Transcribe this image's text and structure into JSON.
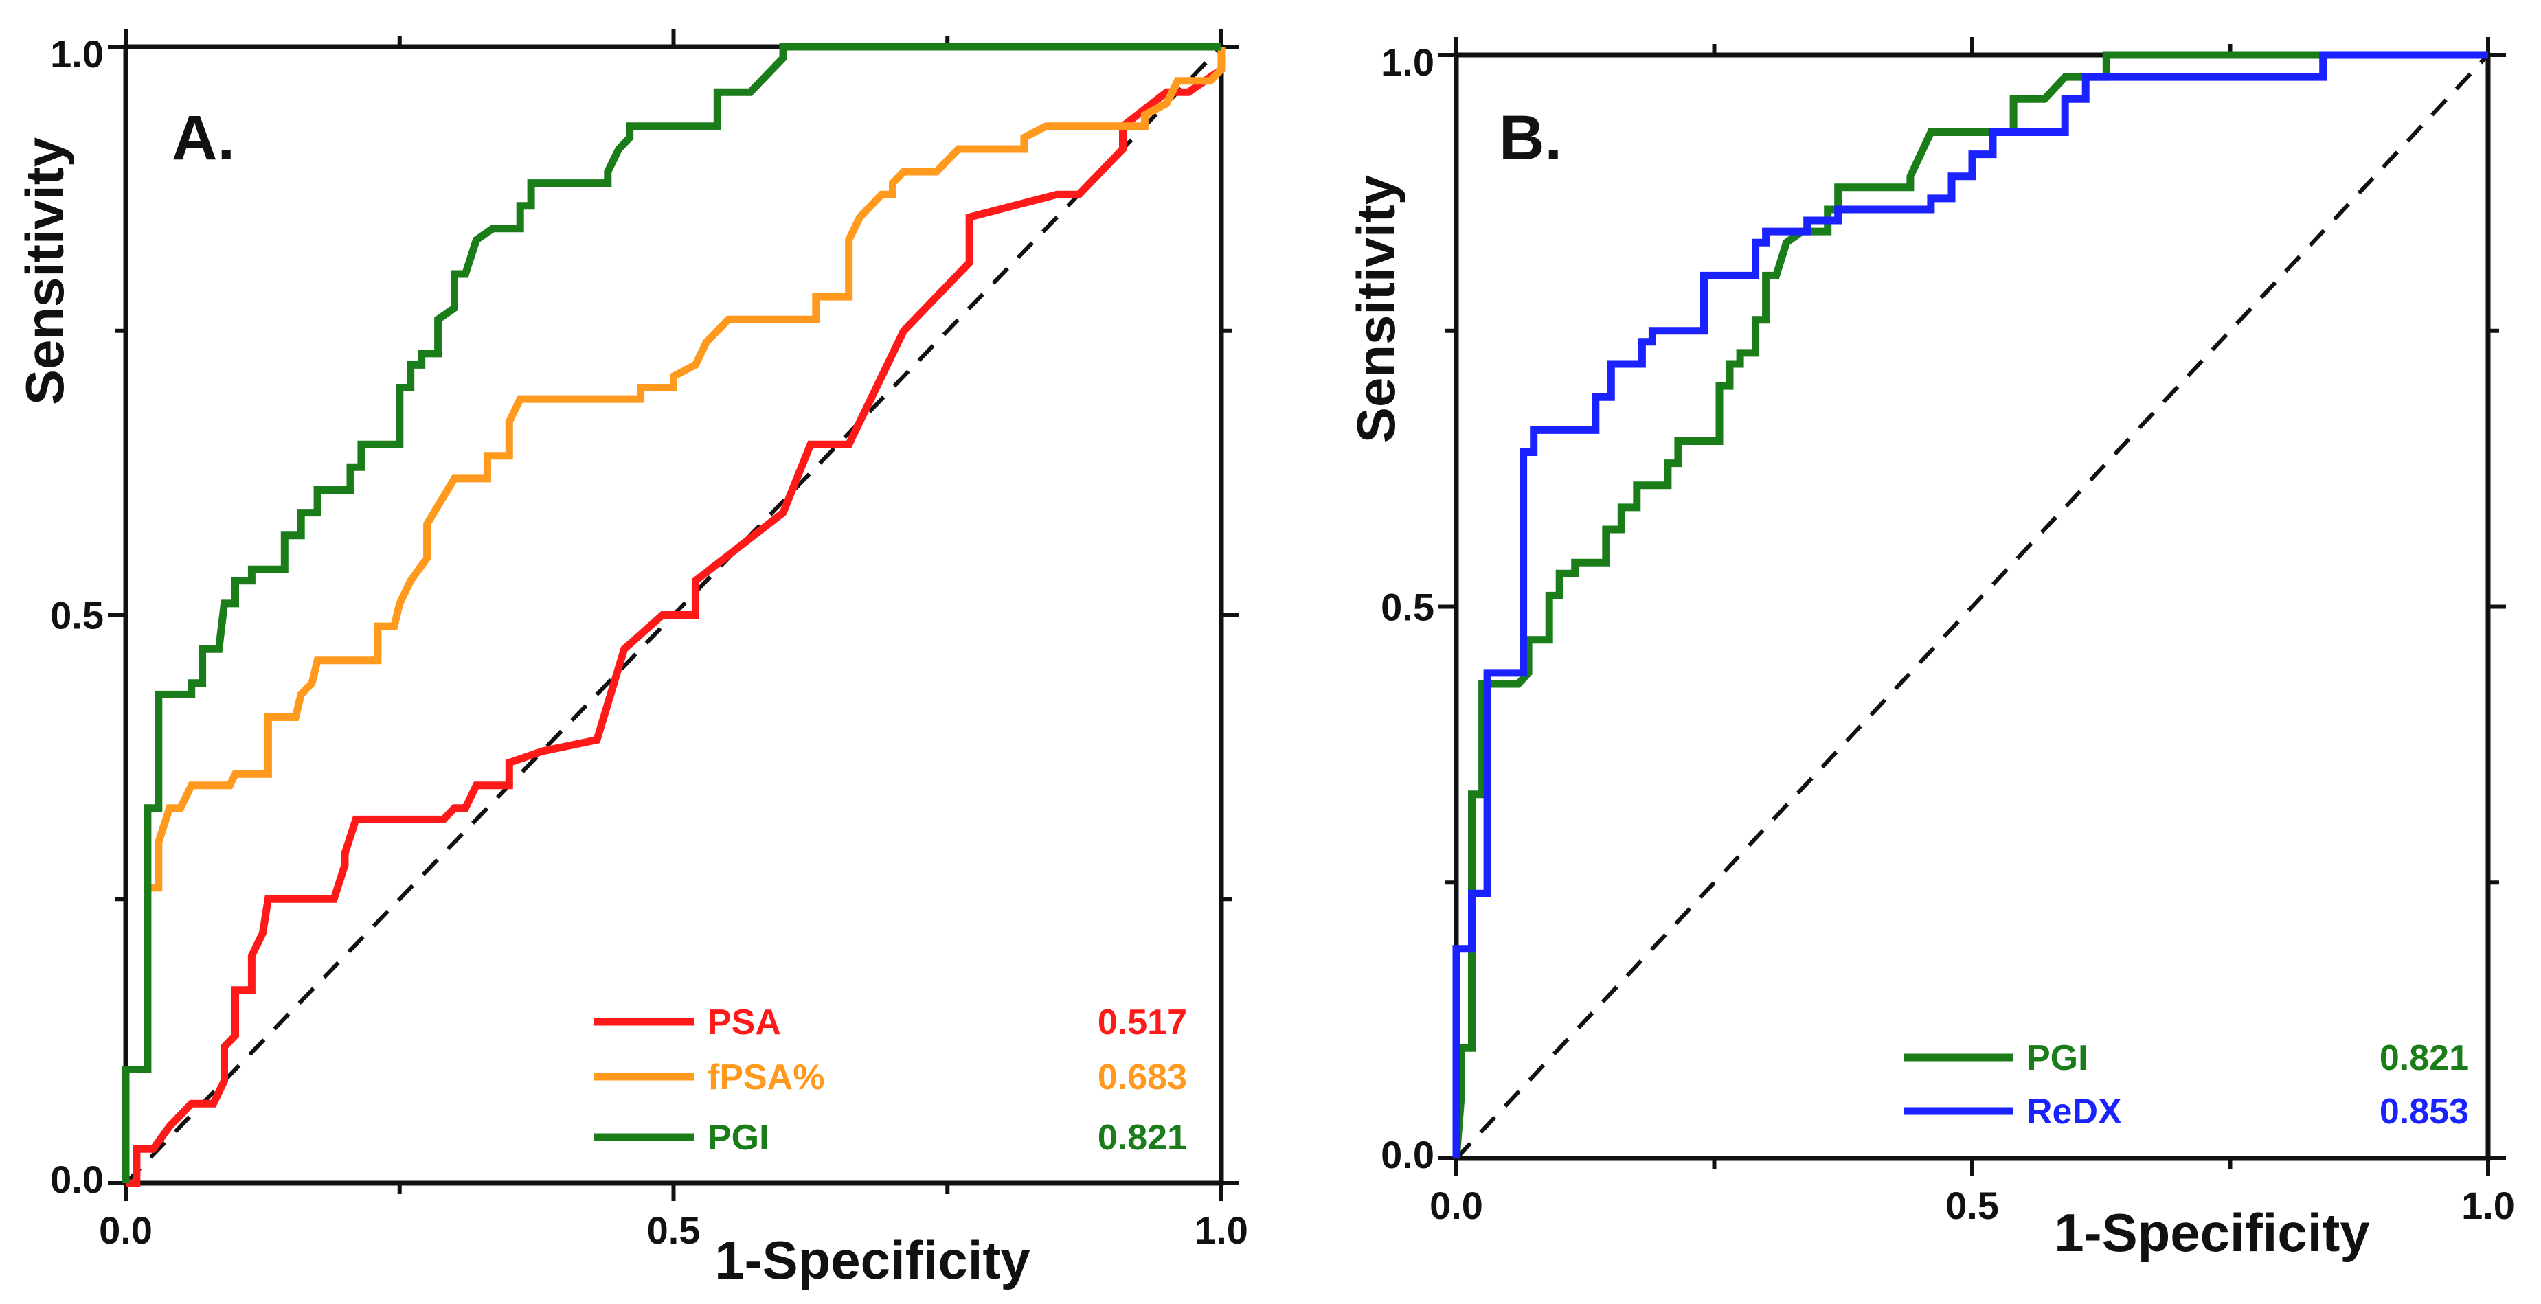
{
  "colors": {
    "PSA": "#ff1a1a",
    "fPSA%": "#ff9a1e",
    "PGI": "#1a7d1a",
    "ReDX": "#1a22ff",
    "reference": "#111111",
    "frame": "#111111"
  },
  "chart_data": [
    {
      "type": "line",
      "panel_label": "A.",
      "title": "",
      "xlabel": "1-Specificity",
      "ylabel": "Sensitivity",
      "xlim": [
        0,
        1
      ],
      "ylim": [
        0,
        1
      ],
      "xticks": [
        "0.0",
        "0.5",
        "1.0"
      ],
      "yticks": [
        "0.0",
        "0.5",
        "1.0"
      ],
      "grid": false,
      "reference_line": [
        [
          0,
          0
        ],
        [
          1,
          1
        ]
      ],
      "legend_position": "bottom-right",
      "series": [
        {
          "name": "PSA",
          "auc": "0.517",
          "color_key": "PSA",
          "points": [
            [
              0,
              0
            ],
            [
              0.01,
              0
            ],
            [
              0.01,
              0.03
            ],
            [
              0.025,
              0.03
            ],
            [
              0.04,
              0.05
            ],
            [
              0.06,
              0.07
            ],
            [
              0.08,
              0.07
            ],
            [
              0.09,
              0.09
            ],
            [
              0.09,
              0.12
            ],
            [
              0.1,
              0.13
            ],
            [
              0.1,
              0.17
            ],
            [
              0.115,
              0.17
            ],
            [
              0.115,
              0.2
            ],
            [
              0.125,
              0.22
            ],
            [
              0.13,
              0.25
            ],
            [
              0.19,
              0.25
            ],
            [
              0.2,
              0.28
            ],
            [
              0.2,
              0.29
            ],
            [
              0.21,
              0.32
            ],
            [
              0.29,
              0.32
            ],
            [
              0.3,
              0.33
            ],
            [
              0.31,
              0.33
            ],
            [
              0.32,
              0.35
            ],
            [
              0.35,
              0.35
            ],
            [
              0.35,
              0.37
            ],
            [
              0.38,
              0.38
            ],
            [
              0.43,
              0.39
            ],
            [
              0.455,
              0.47
            ],
            [
              0.49,
              0.5
            ],
            [
              0.52,
              0.5
            ],
            [
              0.52,
              0.53
            ],
            [
              0.56,
              0.56
            ],
            [
              0.6,
              0.59
            ],
            [
              0.625,
              0.65
            ],
            [
              0.66,
              0.65
            ],
            [
              0.71,
              0.75
            ],
            [
              0.77,
              0.81
            ],
            [
              0.77,
              0.85
            ],
            [
              0.81,
              0.86
            ],
            [
              0.85,
              0.87
            ],
            [
              0.87,
              0.87
            ],
            [
              0.91,
              0.91
            ],
            [
              0.91,
              0.93
            ],
            [
              0.95,
              0.96
            ],
            [
              0.97,
              0.96
            ],
            [
              1,
              0.98
            ],
            [
              1,
              1
            ]
          ]
        },
        {
          "name": "fPSA%",
          "auc": "0.683",
          "color_key": "fPSA%",
          "points": [
            [
              0.02,
              0.26
            ],
            [
              0.03,
              0.26
            ],
            [
              0.03,
              0.3
            ],
            [
              0.04,
              0.33
            ],
            [
              0.05,
              0.33
            ],
            [
              0.06,
              0.35
            ],
            [
              0.095,
              0.35
            ],
            [
              0.1,
              0.36
            ],
            [
              0.13,
              0.36
            ],
            [
              0.13,
              0.41
            ],
            [
              0.155,
              0.41
            ],
            [
              0.16,
              0.43
            ],
            [
              0.17,
              0.44
            ],
            [
              0.175,
              0.46
            ],
            [
              0.23,
              0.46
            ],
            [
              0.23,
              0.49
            ],
            [
              0.245,
              0.49
            ],
            [
              0.25,
              0.51
            ],
            [
              0.26,
              0.53
            ],
            [
              0.275,
              0.55
            ],
            [
              0.275,
              0.58
            ],
            [
              0.3,
              0.62
            ],
            [
              0.33,
              0.62
            ],
            [
              0.33,
              0.64
            ],
            [
              0.35,
              0.64
            ],
            [
              0.35,
              0.67
            ],
            [
              0.36,
              0.69
            ],
            [
              0.47,
              0.69
            ],
            [
              0.47,
              0.7
            ],
            [
              0.5,
              0.7
            ],
            [
              0.5,
              0.71
            ],
            [
              0.52,
              0.72
            ],
            [
              0.53,
              0.74
            ],
            [
              0.55,
              0.76
            ],
            [
              0.63,
              0.76
            ],
            [
              0.63,
              0.78
            ],
            [
              0.66,
              0.78
            ],
            [
              0.66,
              0.83
            ],
            [
              0.67,
              0.85
            ],
            [
              0.69,
              0.87
            ],
            [
              0.7,
              0.87
            ],
            [
              0.7,
              0.88
            ],
            [
              0.71,
              0.89
            ],
            [
              0.74,
              0.89
            ],
            [
              0.76,
              0.91
            ],
            [
              0.82,
              0.91
            ],
            [
              0.82,
              0.92
            ],
            [
              0.84,
              0.93
            ],
            [
              0.93,
              0.93
            ],
            [
              0.93,
              0.94
            ],
            [
              0.95,
              0.95
            ],
            [
              0.96,
              0.97
            ],
            [
              0.99,
              0.97
            ],
            [
              1,
              0.98
            ],
            [
              1,
              1
            ]
          ]
        },
        {
          "name": "PGI",
          "auc": "0.821",
          "color_key": "PGI",
          "points": [
            [
              0,
              0
            ],
            [
              0,
              0.1
            ],
            [
              0.02,
              0.1
            ],
            [
              0.02,
              0.33
            ],
            [
              0.03,
              0.33
            ],
            [
              0.03,
              0.43
            ],
            [
              0.06,
              0.43
            ],
            [
              0.06,
              0.44
            ],
            [
              0.07,
              0.44
            ],
            [
              0.07,
              0.47
            ],
            [
              0.085,
              0.47
            ],
            [
              0.09,
              0.51
            ],
            [
              0.1,
              0.51
            ],
            [
              0.1,
              0.53
            ],
            [
              0.115,
              0.53
            ],
            [
              0.115,
              0.54
            ],
            [
              0.145,
              0.54
            ],
            [
              0.145,
              0.57
            ],
            [
              0.16,
              0.57
            ],
            [
              0.16,
              0.59
            ],
            [
              0.175,
              0.59
            ],
            [
              0.175,
              0.61
            ],
            [
              0.205,
              0.61
            ],
            [
              0.205,
              0.63
            ],
            [
              0.215,
              0.63
            ],
            [
              0.215,
              0.65
            ],
            [
              0.25,
              0.65
            ],
            [
              0.25,
              0.7
            ],
            [
              0.26,
              0.7
            ],
            [
              0.26,
              0.72
            ],
            [
              0.27,
              0.72
            ],
            [
              0.27,
              0.73
            ],
            [
              0.285,
              0.73
            ],
            [
              0.285,
              0.76
            ],
            [
              0.3,
              0.77
            ],
            [
              0.3,
              0.8
            ],
            [
              0.31,
              0.8
            ],
            [
              0.32,
              0.83
            ],
            [
              0.335,
              0.84
            ],
            [
              0.36,
              0.84
            ],
            [
              0.36,
              0.86
            ],
            [
              0.37,
              0.86
            ],
            [
              0.37,
              0.88
            ],
            [
              0.44,
              0.88
            ],
            [
              0.44,
              0.89
            ],
            [
              0.45,
              0.91
            ],
            [
              0.46,
              0.92
            ],
            [
              0.46,
              0.93
            ],
            [
              0.54,
              0.93
            ],
            [
              0.54,
              0.96
            ],
            [
              0.57,
              0.96
            ],
            [
              0.6,
              0.99
            ],
            [
              0.6,
              1
            ],
            [
              1,
              1
            ]
          ]
        }
      ]
    },
    {
      "type": "line",
      "panel_label": "B.",
      "title": "",
      "xlabel": "1-Specificity",
      "ylabel": "Sensitivity",
      "xlim": [
        0,
        1
      ],
      "ylim": [
        0,
        1
      ],
      "xticks": [
        "0.0",
        "0.5",
        "1.0"
      ],
      "yticks": [
        "0.0",
        "0.5",
        "1.0"
      ],
      "grid": false,
      "reference_line": [
        [
          0,
          0
        ],
        [
          1,
          1
        ]
      ],
      "legend_position": "bottom-right",
      "series": [
        {
          "name": "PGI",
          "auc": "0.821",
          "color_key": "PGI",
          "points": [
            [
              0,
              0
            ],
            [
              0.005,
              0.06
            ],
            [
              0.005,
              0.1
            ],
            [
              0.015,
              0.1
            ],
            [
              0.015,
              0.33
            ],
            [
              0.025,
              0.33
            ],
            [
              0.025,
              0.43
            ],
            [
              0.06,
              0.43
            ],
            [
              0.07,
              0.44
            ],
            [
              0.07,
              0.47
            ],
            [
              0.09,
              0.47
            ],
            [
              0.09,
              0.51
            ],
            [
              0.1,
              0.51
            ],
            [
              0.1,
              0.53
            ],
            [
              0.115,
              0.53
            ],
            [
              0.115,
              0.54
            ],
            [
              0.145,
              0.54
            ],
            [
              0.145,
              0.57
            ],
            [
              0.16,
              0.57
            ],
            [
              0.16,
              0.59
            ],
            [
              0.175,
              0.59
            ],
            [
              0.175,
              0.61
            ],
            [
              0.205,
              0.61
            ],
            [
              0.205,
              0.63
            ],
            [
              0.215,
              0.63
            ],
            [
              0.215,
              0.65
            ],
            [
              0.255,
              0.65
            ],
            [
              0.255,
              0.7
            ],
            [
              0.265,
              0.7
            ],
            [
              0.265,
              0.72
            ],
            [
              0.275,
              0.72
            ],
            [
              0.275,
              0.73
            ],
            [
              0.29,
              0.73
            ],
            [
              0.29,
              0.76
            ],
            [
              0.3,
              0.76
            ],
            [
              0.3,
              0.8
            ],
            [
              0.31,
              0.8
            ],
            [
              0.32,
              0.83
            ],
            [
              0.335,
              0.84
            ],
            [
              0.36,
              0.84
            ],
            [
              0.36,
              0.86
            ],
            [
              0.37,
              0.86
            ],
            [
              0.37,
              0.88
            ],
            [
              0.44,
              0.88
            ],
            [
              0.44,
              0.89
            ],
            [
              0.45,
              0.91
            ],
            [
              0.46,
              0.93
            ],
            [
              0.54,
              0.93
            ],
            [
              0.54,
              0.96
            ],
            [
              0.57,
              0.96
            ],
            [
              0.59,
              0.98
            ],
            [
              0.63,
              0.98
            ],
            [
              0.63,
              1
            ],
            [
              1,
              1
            ]
          ]
        },
        {
          "name": "ReDX",
          "auc": "0.853",
          "color_key": "ReDX",
          "points": [
            [
              0,
              0
            ],
            [
              0,
              0.19
            ],
            [
              0.015,
              0.19
            ],
            [
              0.015,
              0.24
            ],
            [
              0.03,
              0.24
            ],
            [
              0.03,
              0.44
            ],
            [
              0.065,
              0.44
            ],
            [
              0.065,
              0.64
            ],
            [
              0.075,
              0.64
            ],
            [
              0.075,
              0.66
            ],
            [
              0.135,
              0.66
            ],
            [
              0.135,
              0.69
            ],
            [
              0.15,
              0.69
            ],
            [
              0.15,
              0.72
            ],
            [
              0.18,
              0.72
            ],
            [
              0.18,
              0.74
            ],
            [
              0.19,
              0.74
            ],
            [
              0.19,
              0.75
            ],
            [
              0.24,
              0.75
            ],
            [
              0.24,
              0.8
            ],
            [
              0.29,
              0.8
            ],
            [
              0.29,
              0.83
            ],
            [
              0.3,
              0.83
            ],
            [
              0.3,
              0.84
            ],
            [
              0.34,
              0.84
            ],
            [
              0.34,
              0.85
            ],
            [
              0.37,
              0.85
            ],
            [
              0.37,
              0.86
            ],
            [
              0.46,
              0.86
            ],
            [
              0.46,
              0.87
            ],
            [
              0.48,
              0.87
            ],
            [
              0.48,
              0.89
            ],
            [
              0.5,
              0.89
            ],
            [
              0.5,
              0.91
            ],
            [
              0.52,
              0.91
            ],
            [
              0.52,
              0.93
            ],
            [
              0.59,
              0.93
            ],
            [
              0.59,
              0.96
            ],
            [
              0.61,
              0.96
            ],
            [
              0.61,
              0.98
            ],
            [
              0.84,
              0.98
            ],
            [
              0.84,
              1
            ],
            [
              1,
              1
            ]
          ]
        }
      ]
    }
  ]
}
